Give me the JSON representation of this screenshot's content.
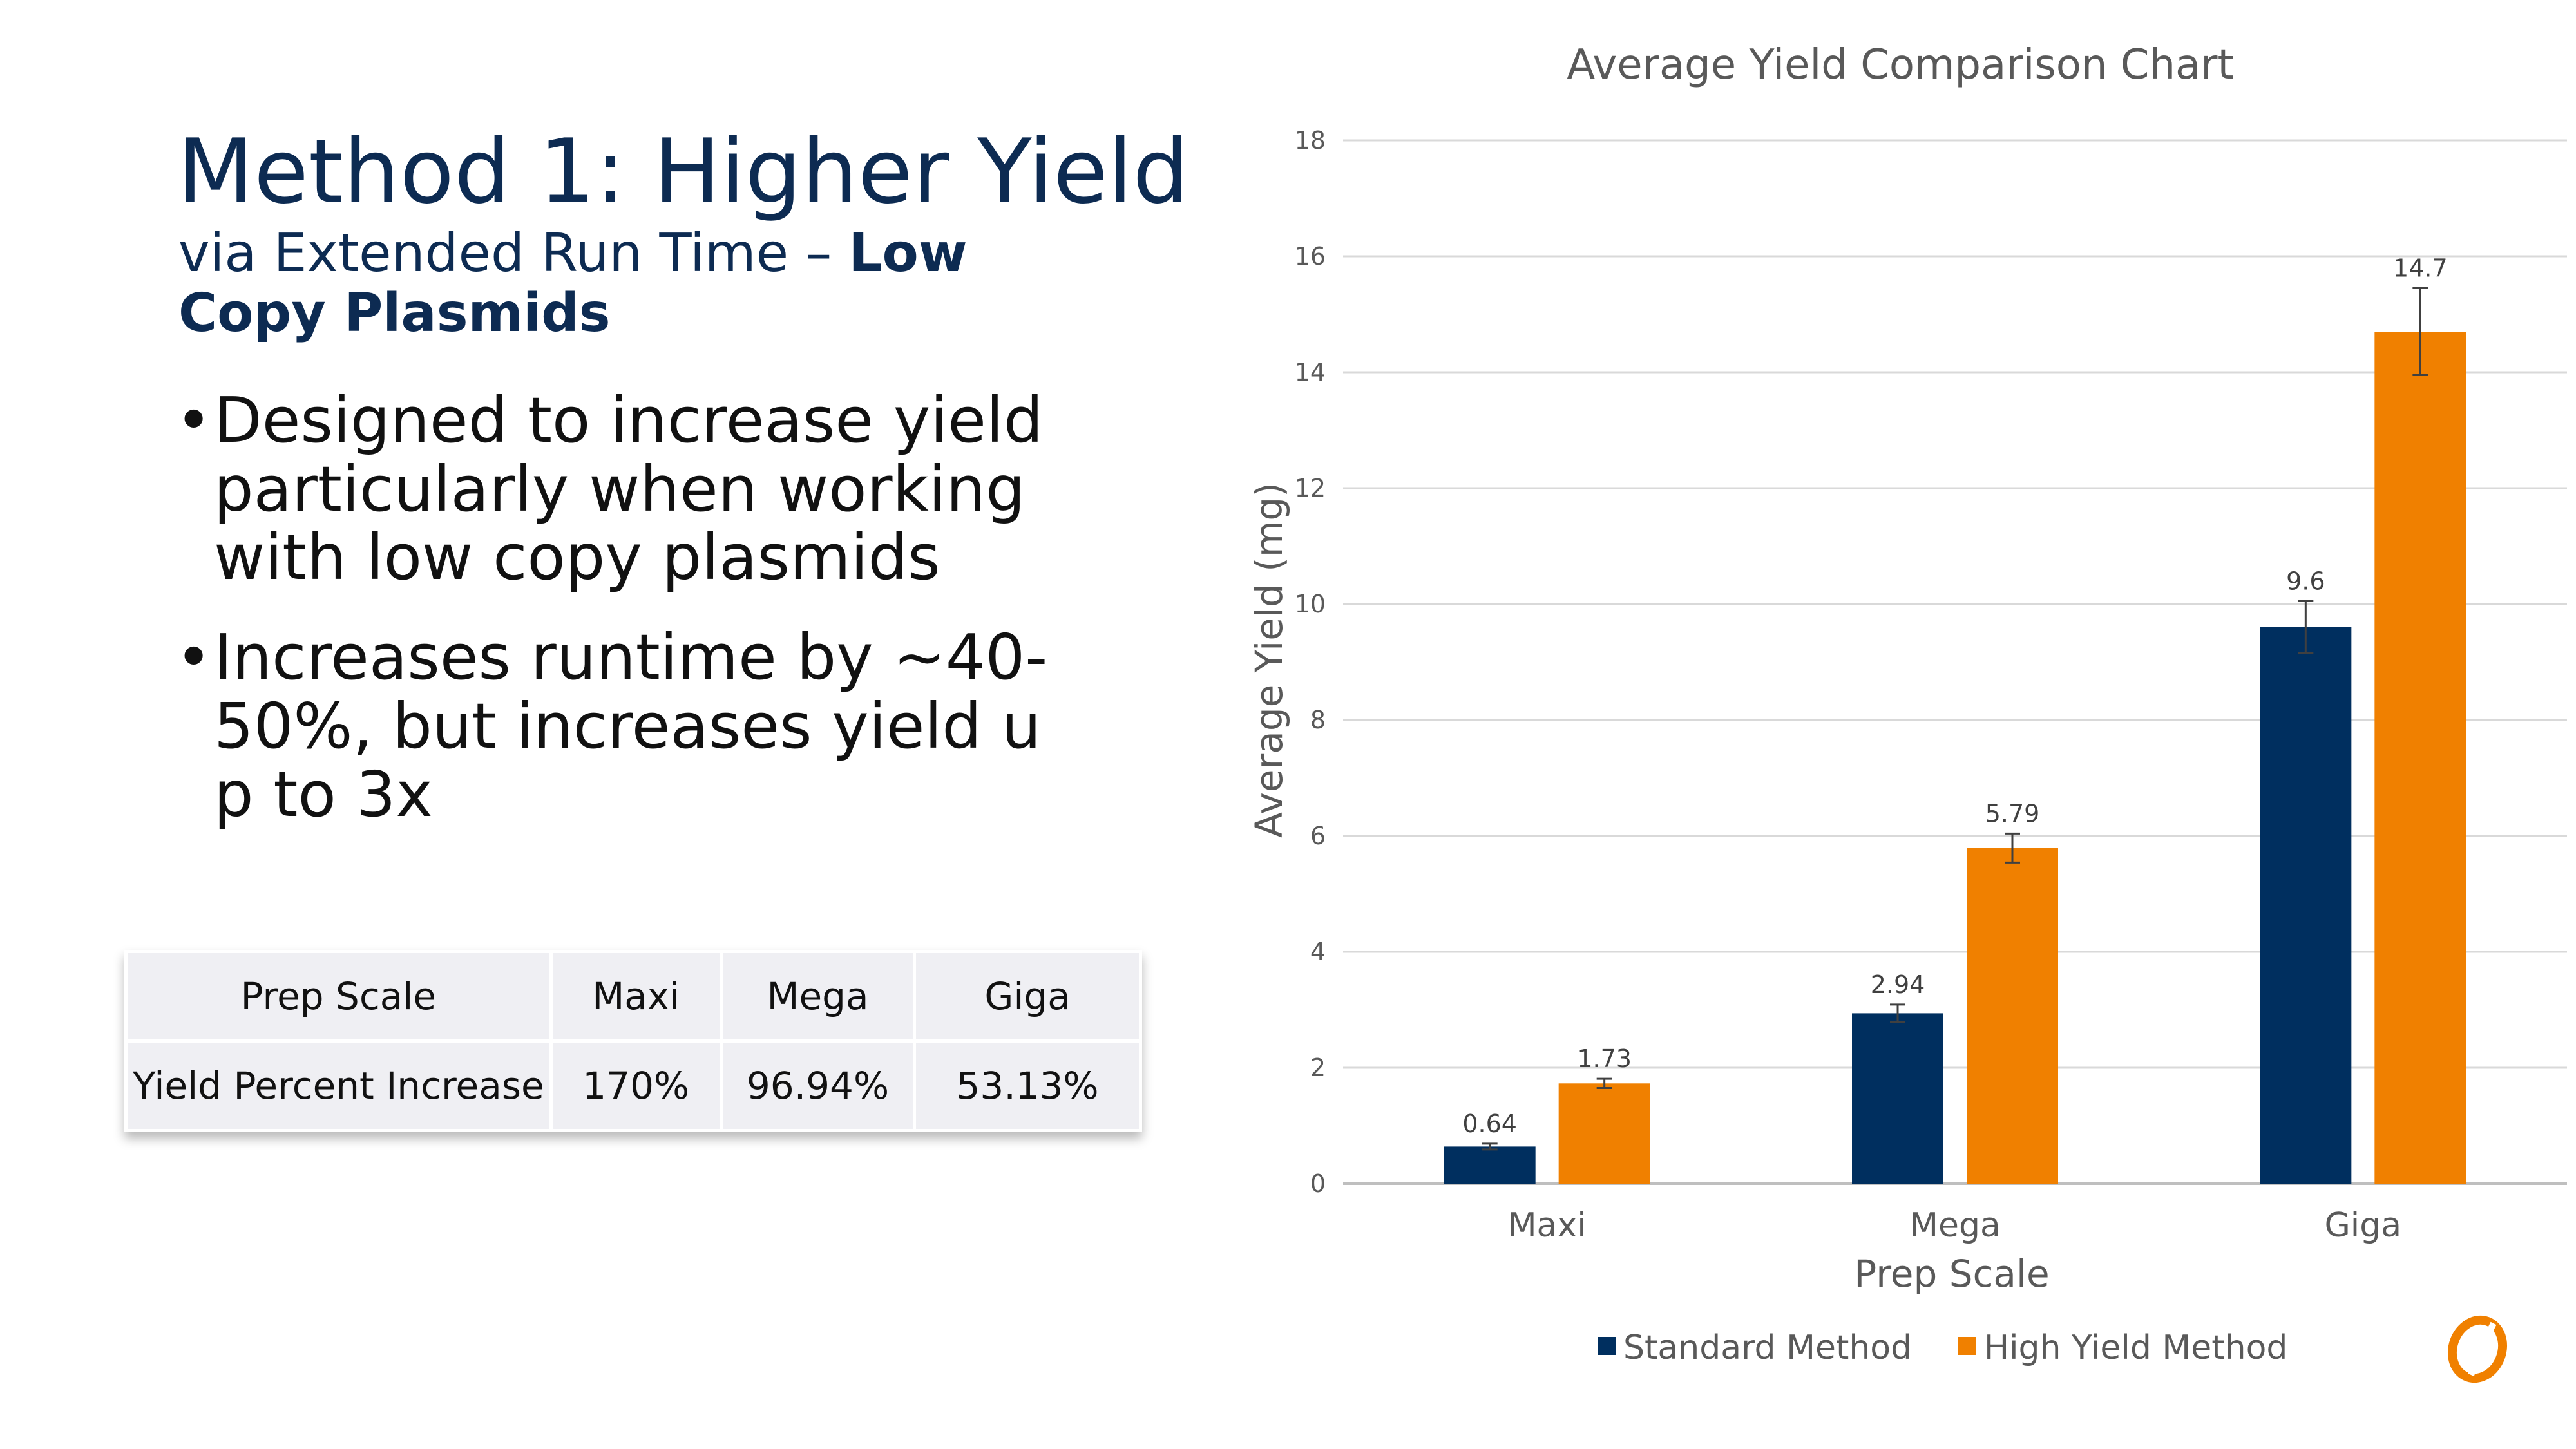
{
  "slide": {
    "title": "Method 1: Higher Yield",
    "subtitle_plain": "via Extended Run Time – ",
    "subtitle_bold": "Low Copy Plasmids",
    "bullets": [
      "Designed to increase yield particularly when working with low copy plasmids",
      "Increases runtime by ~40-50%, but increases yield up to 3x"
    ]
  },
  "table": {
    "rows": [
      [
        "Prep Scale",
        "Maxi",
        "Mega",
        "Giga"
      ],
      [
        "Yield Percent Increase",
        "170%",
        "96.94%",
        "53.13%"
      ]
    ]
  },
  "chart_data": {
    "type": "bar",
    "title": "Average Yield Comparison Chart",
    "xlabel": "Prep Scale",
    "ylabel": "Average Yield (mg)",
    "categories": [
      "Maxi",
      "Mega",
      "Giga"
    ],
    "ylim": [
      0,
      18
    ],
    "yticks": [
      0,
      2,
      4,
      6,
      8,
      10,
      12,
      14,
      16,
      18
    ],
    "grid": true,
    "legend_position": "bottom",
    "series": [
      {
        "name": "Standard Method",
        "color": "#002f5f",
        "values": [
          0.64,
          2.94,
          9.6
        ],
        "errors": [
          0.05,
          0.15,
          0.45
        ]
      },
      {
        "name": "High Yield Method",
        "color": "#f08000",
        "values": [
          1.73,
          5.79,
          14.7
        ],
        "errors": [
          0.08,
          0.25,
          0.75
        ]
      }
    ]
  },
  "logo": {
    "icon": "company-logo-icon",
    "color": "#f08000"
  }
}
